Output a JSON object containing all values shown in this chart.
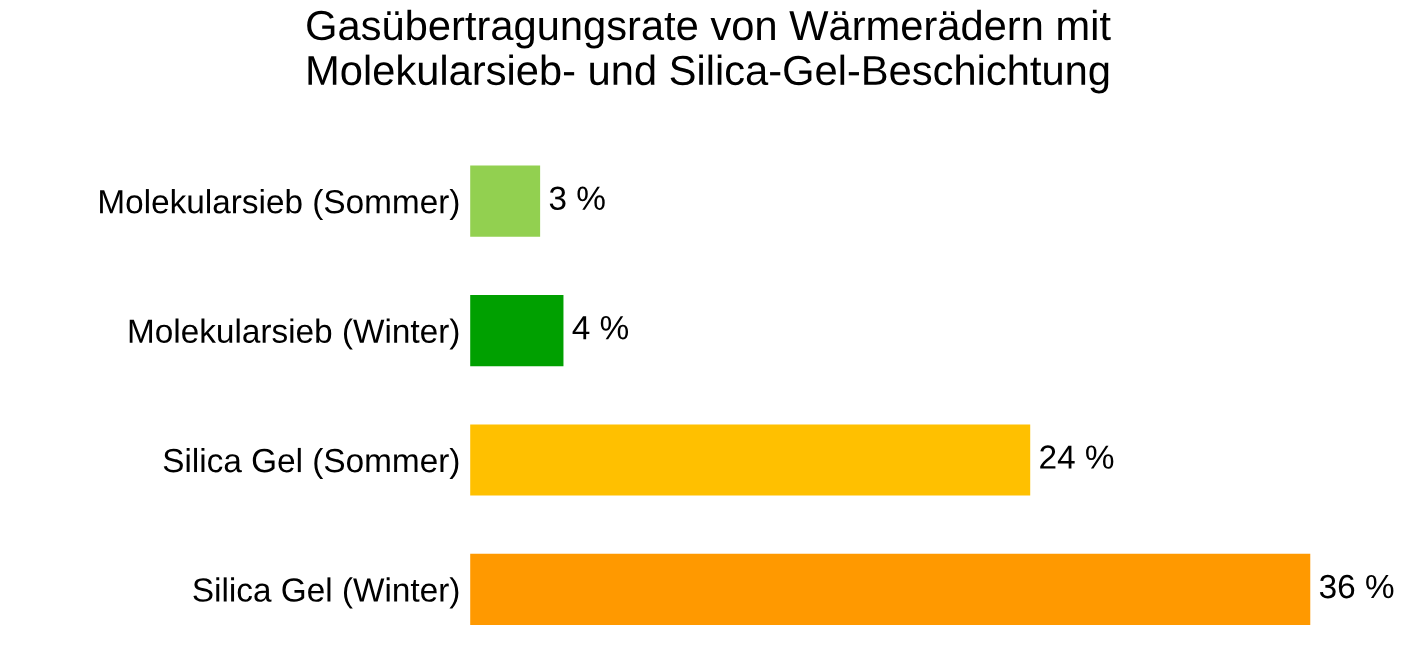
{
  "chart_data": {
    "type": "bar",
    "orientation": "horizontal",
    "title": "Gasübertragungsrate von Wärmerädern mit\nMolekularsieb- und Silica-Gel-Beschichtung",
    "categories": [
      "Molekularsieb (Sommer)",
      "Molekularsieb (Winter)",
      "Silica Gel (Sommer)",
      "Silica Gel (Winter)"
    ],
    "values": [
      3,
      4,
      24,
      36
    ],
    "colors": [
      "#92d050",
      "#00a000",
      "#ffc000",
      "#ff9900"
    ],
    "value_labels": [
      "3 %",
      "4 %",
      "24 %",
      "36 %"
    ],
    "grid": false,
    "legend": false
  }
}
